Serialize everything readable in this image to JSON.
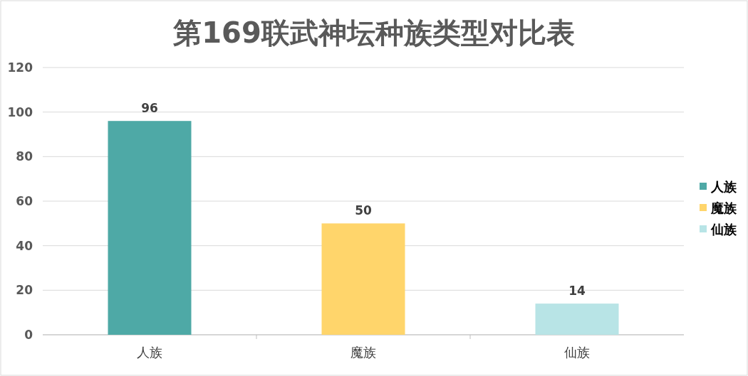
{
  "chart_data": {
    "type": "bar",
    "title": "第169联武神坛种族类型对比表",
    "categories": [
      "人族",
      "魔族",
      "仙族"
    ],
    "series": [
      {
        "name": "人族",
        "color": "#4ea9a6",
        "values": [
          96,
          null,
          null
        ]
      },
      {
        "name": "魔族",
        "color": "#ffd56b",
        "values": [
          null,
          50,
          null
        ]
      },
      {
        "name": "仙族",
        "color": "#b8e4e6",
        "values": [
          null,
          null,
          14
        ]
      }
    ],
    "ylim": [
      0,
      120
    ],
    "yticks": [
      0,
      20,
      40,
      60,
      80,
      100,
      120
    ],
    "grid": "y",
    "legend": "right",
    "data_labels": true
  }
}
